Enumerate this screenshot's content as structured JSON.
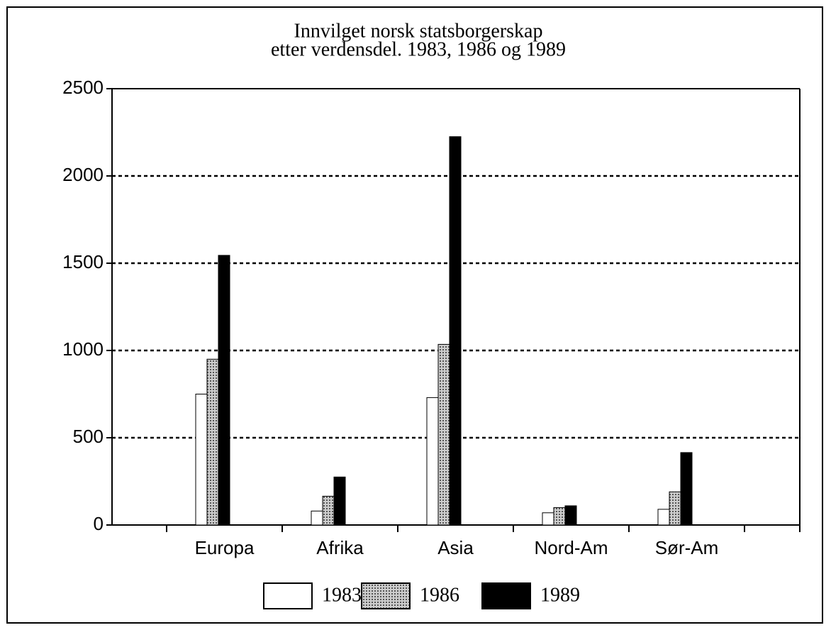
{
  "chart_data": {
    "type": "bar",
    "title": [
      "Innvilget norsk statsborgerskap",
      "etter verdensdel. 1983, 1986 og 1989"
    ],
    "categories": [
      "Europa",
      "Afrika",
      "Asia",
      "Nord-Am",
      "Sør-Am"
    ],
    "series": [
      {
        "name": "1983",
        "color": "#ffffff",
        "values": [
          750,
          80,
          730,
          70,
          90
        ]
      },
      {
        "name": "1986",
        "color": "#9a9a9a",
        "values": [
          950,
          165,
          1035,
          100,
          190
        ]
      },
      {
        "name": "1989",
        "color": "#000000",
        "values": [
          1545,
          275,
          2225,
          110,
          415
        ]
      }
    ],
    "ylim": [
      0,
      2500
    ],
    "yticks": [
      0,
      500,
      1000,
      1500,
      2000,
      2500
    ],
    "grid": true,
    "legend": "bottom"
  }
}
